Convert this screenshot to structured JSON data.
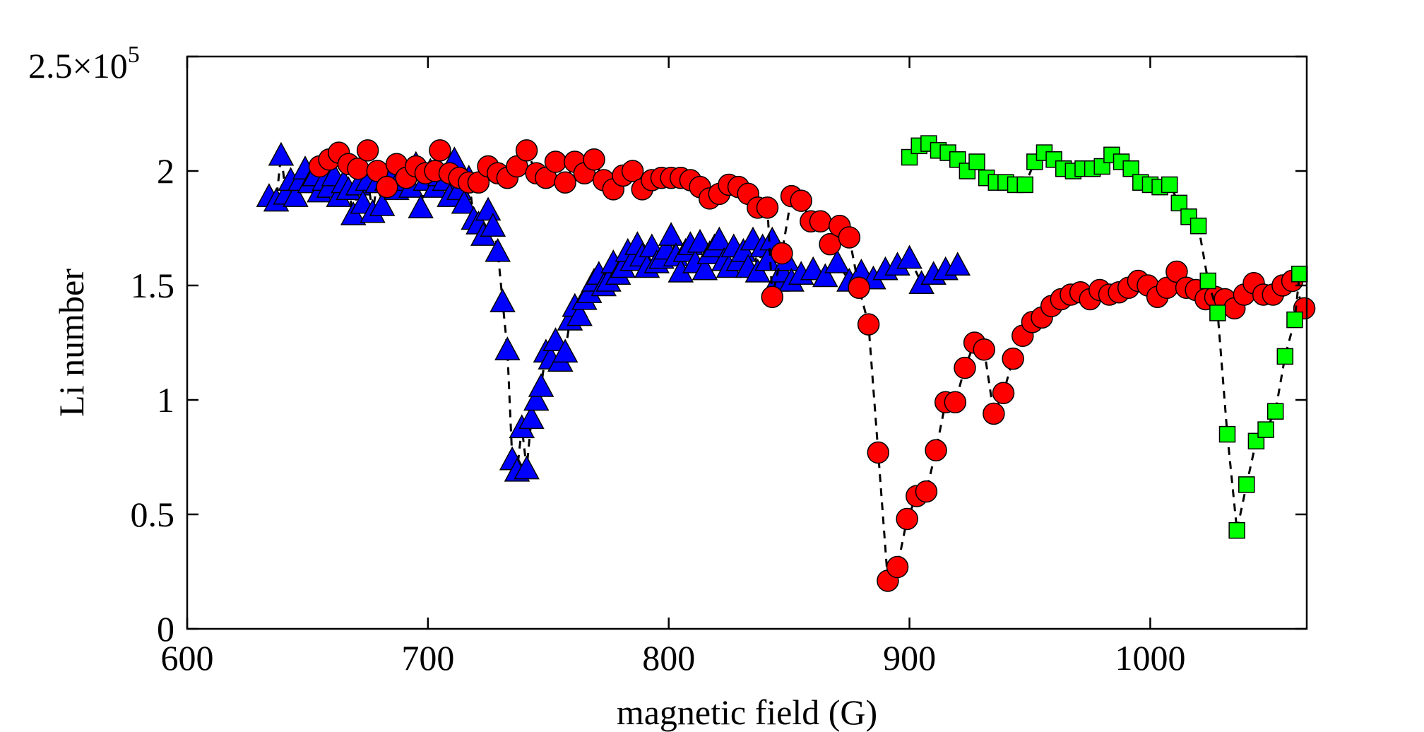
{
  "chart_data": {
    "type": "scatter",
    "title": "",
    "xlabel": "magnetic field (G)",
    "ylabel": "Li number",
    "xlim": [
      600,
      1065
    ],
    "ylim": [
      0,
      250000
    ],
    "xticks": [
      600,
      700,
      800,
      900,
      1000
    ],
    "xtick_labels": [
      "600",
      "700",
      "800",
      "900",
      "1000"
    ],
    "yticks": [
      0,
      50000,
      100000,
      150000,
      200000,
      250000
    ],
    "ytick_labels": [
      "0",
      "0.5",
      "1",
      "1.5",
      "2",
      "2.5"
    ],
    "y_exponent_base": "2.5×10",
    "y_exponent_power": "5",
    "grid": false,
    "legend": "none",
    "series": [
      {
        "name": "blue triangles",
        "marker": "triangle",
        "color": "#0000ff",
        "line_style": "dashed",
        "points": [
          [
            634,
            189000
          ],
          [
            637,
            187000
          ],
          [
            639,
            207000
          ],
          [
            641,
            190000
          ],
          [
            643,
            196000
          ],
          [
            645,
            189000
          ],
          [
            647,
            196000
          ],
          [
            649,
            201000
          ],
          [
            651,
            195000
          ],
          [
            653,
            198000
          ],
          [
            655,
            191000
          ],
          [
            657,
            196000
          ],
          [
            659,
            193000
          ],
          [
            661,
            198000
          ],
          [
            663,
            189000
          ],
          [
            665,
            195000
          ],
          [
            667,
            192000
          ],
          [
            669,
            181000
          ],
          [
            671,
            194000
          ],
          [
            673,
            186000
          ],
          [
            675,
            196000
          ],
          [
            677,
            182000
          ],
          [
            679,
            195000
          ],
          [
            681,
            185000
          ],
          [
            683,
            196000
          ],
          [
            685,
            199000
          ],
          [
            687,
            192000
          ],
          [
            689,
            198000
          ],
          [
            691,
            196000
          ],
          [
            693,
            193000
          ],
          [
            695,
            203000
          ],
          [
            697,
            184000
          ],
          [
            699,
            196000
          ],
          [
            701,
            200000
          ],
          [
            703,
            193000
          ],
          [
            705,
            198000
          ],
          [
            707,
            196000
          ],
          [
            709,
            189000
          ],
          [
            711,
            205000
          ],
          [
            713,
            192000
          ],
          [
            715,
            186000
          ],
          [
            717,
            197000
          ],
          [
            719,
            179000
          ],
          [
            721,
            177000
          ],
          [
            723,
            172000
          ],
          [
            725,
            183000
          ],
          [
            727,
            176000
          ],
          [
            729,
            165000
          ],
          [
            731,
            143000
          ],
          [
            733,
            122000
          ],
          [
            735,
            74000
          ],
          [
            737,
            69000
          ],
          [
            739,
            88000
          ],
          [
            741,
            70000
          ],
          [
            743,
            92000
          ],
          [
            745,
            100000
          ],
          [
            747,
            106000
          ],
          [
            749,
            121000
          ],
          [
            751,
            118000
          ],
          [
            753,
            126000
          ],
          [
            755,
            117000
          ],
          [
            757,
            121000
          ],
          [
            759,
            135000
          ],
          [
            761,
            141000
          ],
          [
            763,
            137000
          ],
          [
            765,
            144000
          ],
          [
            767,
            147000
          ],
          [
            769,
            152000
          ],
          [
            771,
            155000
          ],
          [
            773,
            150000
          ],
          [
            775,
            152000
          ],
          [
            777,
            160000
          ],
          [
            779,
            155000
          ],
          [
            781,
            158000
          ],
          [
            783,
            165000
          ],
          [
            785,
            161000
          ],
          [
            787,
            168000
          ],
          [
            789,
            163000
          ],
          [
            791,
            158000
          ],
          [
            793,
            167000
          ],
          [
            795,
            160000
          ],
          [
            797,
            162000
          ],
          [
            799,
            166000
          ],
          [
            801,
            172000
          ],
          [
            803,
            163000
          ],
          [
            805,
            156000
          ],
          [
            807,
            165000
          ],
          [
            809,
            168000
          ],
          [
            811,
            160000
          ],
          [
            813,
            169000
          ],
          [
            815,
            157000
          ],
          [
            817,
            164000
          ],
          [
            819,
            167000
          ],
          [
            821,
            170000
          ],
          [
            823,
            161000
          ],
          [
            825,
            158000
          ],
          [
            827,
            167000
          ],
          [
            829,
            161000
          ],
          [
            831,
            165000
          ],
          [
            833,
            158000
          ],
          [
            835,
            170000
          ],
          [
            837,
            156000
          ],
          [
            839,
            167000
          ],
          [
            841,
            161000
          ],
          [
            843,
            170000
          ],
          [
            845,
            152000
          ],
          [
            847,
            156000
          ],
          [
            849,
            161000
          ],
          [
            851,
            152000
          ],
          [
            855,
            155000
          ],
          [
            860,
            157000
          ],
          [
            865,
            154000
          ],
          [
            870,
            160000
          ],
          [
            875,
            152000
          ],
          [
            880,
            156000
          ],
          [
            885,
            153000
          ],
          [
            890,
            157000
          ],
          [
            895,
            159000
          ],
          [
            900,
            162000
          ],
          [
            905,
            151000
          ],
          [
            910,
            155000
          ],
          [
            915,
            157000
          ],
          [
            920,
            159000
          ]
        ]
      },
      {
        "name": "red circles",
        "marker": "circle",
        "color": "#ff0000",
        "line_style": "dashed",
        "points": [
          [
            655,
            202000
          ],
          [
            659,
            205000
          ],
          [
            663,
            208000
          ],
          [
            667,
            203000
          ],
          [
            671,
            201000
          ],
          [
            675,
            209000
          ],
          [
            679,
            200000
          ],
          [
            683,
            193000
          ],
          [
            687,
            203000
          ],
          [
            691,
            197000
          ],
          [
            695,
            202000
          ],
          [
            699,
            199000
          ],
          [
            703,
            200000
          ],
          [
            705,
            209000
          ],
          [
            709,
            199000
          ],
          [
            713,
            197000
          ],
          [
            717,
            195000
          ],
          [
            721,
            195000
          ],
          [
            725,
            202000
          ],
          [
            729,
            199000
          ],
          [
            733,
            197000
          ],
          [
            737,
            202000
          ],
          [
            741,
            209000
          ],
          [
            745,
            199000
          ],
          [
            749,
            197000
          ],
          [
            753,
            204000
          ],
          [
            757,
            195000
          ],
          [
            761,
            204000
          ],
          [
            765,
            199000
          ],
          [
            769,
            205000
          ],
          [
            773,
            196000
          ],
          [
            777,
            192000
          ],
          [
            781,
            198000
          ],
          [
            785,
            200000
          ],
          [
            789,
            192000
          ],
          [
            793,
            196000
          ],
          [
            797,
            197000
          ],
          [
            801,
            197000
          ],
          [
            805,
            197000
          ],
          [
            809,
            196000
          ],
          [
            813,
            193000
          ],
          [
            817,
            188000
          ],
          [
            821,
            190000
          ],
          [
            825,
            194000
          ],
          [
            829,
            193000
          ],
          [
            833,
            190000
          ],
          [
            837,
            184000
          ],
          [
            841,
            184000
          ],
          [
            843,
            145000
          ],
          [
            847,
            164000
          ],
          [
            851,
            189000
          ],
          [
            855,
            187000
          ],
          [
            859,
            178000
          ],
          [
            863,
            178000
          ],
          [
            867,
            168000
          ],
          [
            871,
            176000
          ],
          [
            875,
            171000
          ],
          [
            879,
            149000
          ],
          [
            883,
            133000
          ],
          [
            887,
            77000
          ],
          [
            891,
            21000
          ],
          [
            895,
            27000
          ],
          [
            899,
            48000
          ],
          [
            903,
            58000
          ],
          [
            907,
            60000
          ],
          [
            911,
            78000
          ],
          [
            915,
            99000
          ],
          [
            919,
            99000
          ],
          [
            923,
            114000
          ],
          [
            927,
            125000
          ],
          [
            931,
            122000
          ],
          [
            935,
            94000
          ],
          [
            939,
            103000
          ],
          [
            943,
            118000
          ],
          [
            947,
            128000
          ],
          [
            951,
            134000
          ],
          [
            955,
            136000
          ],
          [
            959,
            141000
          ],
          [
            963,
            144000
          ],
          [
            967,
            146000
          ],
          [
            971,
            147000
          ],
          [
            975,
            144000
          ],
          [
            979,
            148000
          ],
          [
            983,
            146000
          ],
          [
            987,
            147000
          ],
          [
            991,
            149000
          ],
          [
            995,
            152000
          ],
          [
            999,
            150000
          ],
          [
            1003,
            145000
          ],
          [
            1007,
            149000
          ],
          [
            1011,
            156000
          ],
          [
            1015,
            149000
          ],
          [
            1019,
            148000
          ],
          [
            1023,
            144000
          ],
          [
            1027,
            145000
          ],
          [
            1031,
            144000
          ],
          [
            1035,
            140000
          ],
          [
            1039,
            146000
          ],
          [
            1043,
            151000
          ],
          [
            1047,
            146000
          ],
          [
            1051,
            146000
          ],
          [
            1055,
            150000
          ],
          [
            1059,
            152000
          ],
          [
            1064,
            140000
          ]
        ]
      },
      {
        "name": "green squares",
        "marker": "square",
        "color": "#00ff00",
        "line_style": "dashed",
        "points": [
          [
            900,
            206000
          ],
          [
            904,
            211000
          ],
          [
            908,
            212000
          ],
          [
            912,
            209000
          ],
          [
            916,
            208000
          ],
          [
            920,
            205000
          ],
          [
            924,
            200000
          ],
          [
            928,
            204000
          ],
          [
            932,
            197000
          ],
          [
            936,
            195000
          ],
          [
            940,
            195000
          ],
          [
            944,
            194000
          ],
          [
            948,
            194000
          ],
          [
            952,
            204000
          ],
          [
            956,
            208000
          ],
          [
            960,
            205000
          ],
          [
            964,
            201000
          ],
          [
            968,
            200000
          ],
          [
            972,
            201000
          ],
          [
            976,
            201000
          ],
          [
            980,
            202000
          ],
          [
            984,
            207000
          ],
          [
            988,
            204000
          ],
          [
            992,
            201000
          ],
          [
            996,
            195000
          ],
          [
            1000,
            194000
          ],
          [
            1004,
            193000
          ],
          [
            1008,
            194000
          ],
          [
            1012,
            186000
          ],
          [
            1016,
            180000
          ],
          [
            1020,
            176000
          ],
          [
            1024,
            152000
          ],
          [
            1028,
            138000
          ],
          [
            1032,
            85000
          ],
          [
            1036,
            43000
          ],
          [
            1040,
            63000
          ],
          [
            1044,
            82000
          ],
          [
            1048,
            87000
          ],
          [
            1052,
            95000
          ],
          [
            1056,
            119000
          ],
          [
            1060,
            135000
          ],
          [
            1062,
            155000
          ]
        ]
      }
    ]
  }
}
